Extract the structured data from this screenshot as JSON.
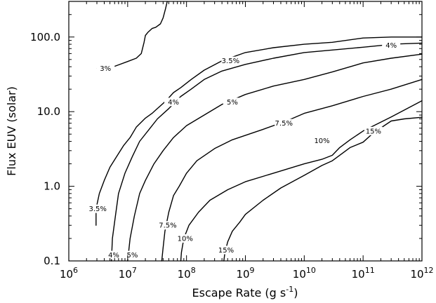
{
  "chart_data": {
    "type": "line",
    "title": "",
    "xlabel": "Escape Rate (g s",
    "xlabel_sup": "-1",
    "xlabel_end": ")",
    "ylabel": "Flux EUV (solar)",
    "xscale": "log",
    "yscale": "log",
    "xlim": [
      1000000,
      1000000000000
    ],
    "ylim": [
      0.1,
      300
    ],
    "x_ticks": [
      {
        "value": 1000000,
        "base": "10",
        "exp": "6"
      },
      {
        "value": 10000000,
        "base": "10",
        "exp": "7"
      },
      {
        "value": 100000000,
        "base": "10",
        "exp": "8"
      },
      {
        "value": 1000000000,
        "base": "10",
        "exp": "9"
      },
      {
        "value": 10000000000,
        "base": "10",
        "exp": "10"
      },
      {
        "value": 100000000000,
        "base": "10",
        "exp": "11"
      },
      {
        "value": 1000000000000,
        "base": "10",
        "exp": "12"
      }
    ],
    "y_ticks": [
      {
        "value": 0.1,
        "label": "0.1"
      },
      {
        "value": 1.0,
        "label": "1.0"
      },
      {
        "value": 10.0,
        "label": "10.0"
      },
      {
        "value": 100.0,
        "label": "100.0"
      }
    ],
    "grid": false,
    "series": [
      {
        "name": "3%",
        "points": [
          [
            3000000,
            38
          ],
          [
            3900000,
            38
          ],
          [
            4500000,
            38
          ],
          [
            5500000,
            39.5
          ],
          [
            6800000,
            42
          ],
          [
            10000000,
            47
          ],
          [
            14000000,
            52
          ],
          [
            17000000,
            60
          ],
          [
            19000000,
            85
          ],
          [
            20000000,
            105
          ],
          [
            22000000,
            115
          ],
          [
            26000000,
            130
          ],
          [
            30000000,
            135
          ],
          [
            36000000,
            150
          ],
          [
            40000000,
            180
          ],
          [
            44000000,
            240
          ],
          [
            47000000,
            300
          ]
        ],
        "labels": [
          {
            "text": "3%",
            "x": 4200000,
            "y": 38
          }
        ]
      },
      {
        "name": "3.5%",
        "points": [
          [
            2900000,
            0.3
          ],
          [
            2900000,
            0.5
          ],
          [
            3300000,
            0.8
          ],
          [
            4000000,
            1.2
          ],
          [
            5000000,
            1.8
          ],
          [
            6500000,
            2.5
          ],
          [
            8500000,
            3.5
          ],
          [
            11000000,
            4.5
          ],
          [
            14000000,
            6.2
          ],
          [
            20000000,
            8.2
          ],
          [
            26000000,
            9.5
          ],
          [
            30000000,
            10.5
          ],
          [
            45000000,
            14
          ],
          [
            60000000,
            18
          ],
          [
            80000000,
            21
          ],
          [
            120000000,
            27
          ],
          [
            200000000,
            36
          ],
          [
            400000000,
            48
          ],
          [
            1000000000,
            62
          ],
          [
            3000000000,
            72
          ],
          [
            10000000000,
            80
          ],
          [
            30000000000,
            85
          ],
          [
            100000000000,
            97
          ],
          [
            300000000000,
            100
          ],
          [
            1000000000000,
            100
          ]
        ],
        "labels": [
          {
            "text": "3.5%",
            "x": 3100000,
            "y": 0.5
          },
          {
            "text": "3.5%",
            "x": 560000000,
            "y": 48
          }
        ]
      },
      {
        "name": "4%",
        "points": [
          [
            5300000,
            0.1
          ],
          [
            5500000,
            0.2
          ],
          [
            6200000,
            0.4
          ],
          [
            7000000,
            0.8
          ],
          [
            9000000,
            1.5
          ],
          [
            12000000,
            2.5
          ],
          [
            16000000,
            4
          ],
          [
            24000000,
            6
          ],
          [
            32000000,
            8
          ],
          [
            50000000,
            11
          ],
          [
            80000000,
            16
          ],
          [
            120000000,
            20
          ],
          [
            200000000,
            27
          ],
          [
            400000000,
            35
          ],
          [
            1000000000,
            43
          ],
          [
            3000000000,
            52
          ],
          [
            10000000000,
            62
          ],
          [
            30000000000,
            67
          ],
          [
            100000000000,
            73
          ],
          [
            200000000000,
            77
          ],
          [
            300000000000,
            80
          ],
          [
            1000000000000,
            83
          ]
        ],
        "labels": [
          {
            "text": "4%",
            "x": 5800000,
            "y": 0.12
          },
          {
            "text": "4%",
            "x": 60000000,
            "y": 13.5
          },
          {
            "text": "4%",
            "x": 300000000000,
            "y": 78
          }
        ]
      },
      {
        "name": "5%",
        "points": [
          [
            10000000,
            0.1
          ],
          [
            11000000,
            0.2
          ],
          [
            13000000,
            0.4
          ],
          [
            16000000,
            0.8
          ],
          [
            20000000,
            1.2
          ],
          [
            28000000,
            2
          ],
          [
            40000000,
            3
          ],
          [
            60000000,
            4.5
          ],
          [
            100000000,
            6.5
          ],
          [
            200000000,
            9
          ],
          [
            400000000,
            12.5
          ],
          [
            1000000000,
            17
          ],
          [
            3000000000,
            22
          ],
          [
            10000000000,
            27
          ],
          [
            30000000000,
            34
          ],
          [
            100000000000,
            45
          ],
          [
            300000000000,
            52
          ],
          [
            1000000000000,
            59
          ]
        ],
        "labels": [
          {
            "text": "5%",
            "x": 12000000,
            "y": 0.12
          },
          {
            "text": "5%",
            "x": 600000000,
            "y": 13.5
          }
        ]
      },
      {
        "name": "7.5%",
        "points": [
          [
            38000000,
            0.1
          ],
          [
            40000000,
            0.15
          ],
          [
            43000000,
            0.25
          ],
          [
            50000000,
            0.45
          ],
          [
            60000000,
            0.75
          ],
          [
            75000000,
            1
          ],
          [
            100000000,
            1.5
          ],
          [
            150000000,
            2.2
          ],
          [
            300000000,
            3.2
          ],
          [
            600000000,
            4.2
          ],
          [
            2000000000,
            5.8
          ],
          [
            5000000000,
            7.5
          ],
          [
            10000000000,
            9.5
          ],
          [
            30000000000,
            12
          ],
          [
            100000000000,
            16
          ],
          [
            300000000000,
            20
          ],
          [
            1000000000000,
            27
          ]
        ],
        "labels": [
          {
            "text": "7.5%",
            "x": 48000000,
            "y": 0.3
          },
          {
            "text": "7.5%",
            "x": 4500000000,
            "y": 7
          }
        ]
      },
      {
        "name": "10%",
        "points": [
          [
            80000000,
            0.1
          ],
          [
            82000000,
            0.13
          ],
          [
            90000000,
            0.2
          ],
          [
            110000000,
            0.3
          ],
          [
            160000000,
            0.45
          ],
          [
            250000000,
            0.65
          ],
          [
            500000000,
            0.9
          ],
          [
            1000000000,
            1.15
          ],
          [
            3000000000,
            1.5
          ],
          [
            10000000000,
            2
          ],
          [
            20000000000,
            2.3
          ],
          [
            30000000000,
            2.6
          ],
          [
            40000000000,
            3.3
          ],
          [
            60000000000,
            4.2
          ],
          [
            100000000000,
            5.5
          ],
          [
            300000000000,
            8.5
          ],
          [
            1000000000000,
            14
          ]
        ],
        "labels": [
          {
            "text": "10%",
            "x": 95000000,
            "y": 0.2
          },
          {
            "text": "10%",
            "x": 20000000000,
            "y": 4.1
          }
        ]
      },
      {
        "name": "15%",
        "points": [
          [
            430000000,
            0.1
          ],
          [
            450000000,
            0.13
          ],
          [
            500000000,
            0.18
          ],
          [
            600000000,
            0.25
          ],
          [
            800000000,
            0.33
          ],
          [
            1000000000,
            0.42
          ],
          [
            2000000000,
            0.65
          ],
          [
            4000000000,
            0.95
          ],
          [
            10000000000,
            1.4
          ],
          [
            20000000000,
            1.9
          ],
          [
            30000000000,
            2.2
          ],
          [
            40000000000,
            2.6
          ],
          [
            60000000000,
            3.3
          ],
          [
            100000000000,
            3.9
          ],
          [
            150000000000,
            5.2
          ],
          [
            300000000000,
            7.5
          ],
          [
            500000000000,
            8
          ],
          [
            1000000000000,
            8.4
          ]
        ],
        "labels": [
          {
            "text": "15%",
            "x": 470000000,
            "y": 0.14
          },
          {
            "text": "15%",
            "x": 150000000000,
            "y": 5.5
          }
        ]
      }
    ]
  }
}
